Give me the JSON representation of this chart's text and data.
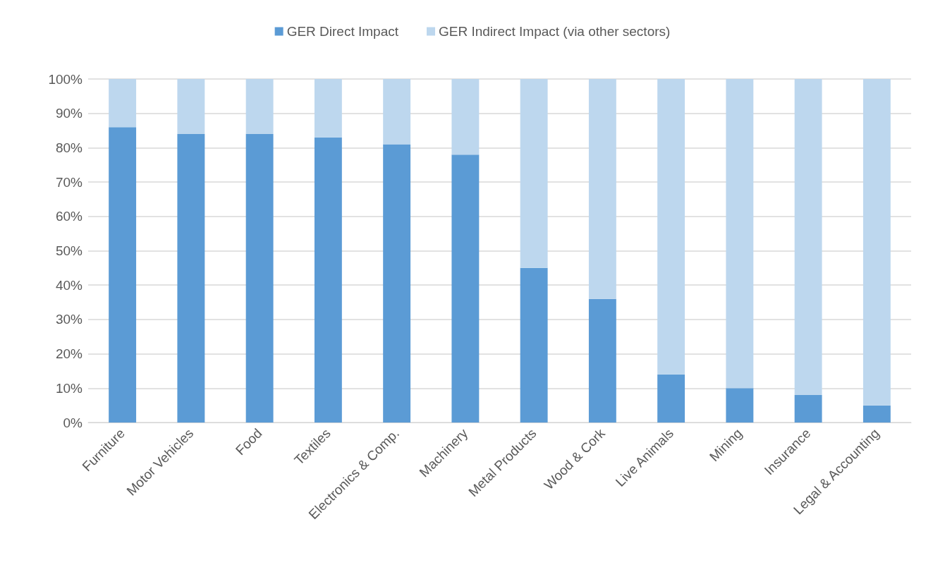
{
  "chart_data": {
    "type": "bar",
    "stacked": true,
    "categories": [
      "Furniture",
      "Motor Vehicles",
      "Food",
      "Textiles",
      "Electronics & Comp.",
      "Machinery",
      "Metal Products",
      "Wood & Cork",
      "Live Animals",
      "Mining",
      "Insurance",
      "Legal & Accounting"
    ],
    "series": [
      {
        "name": "GER Direct Impact",
        "color": "#5b9bd5",
        "values": [
          86,
          84,
          84,
          83,
          81,
          78,
          45,
          36,
          14,
          10,
          8,
          5
        ]
      },
      {
        "name": "GER Indirect Impact (via other sectors)",
        "color": "#bdd7ee",
        "values": [
          14,
          16,
          16,
          17,
          19,
          22,
          55,
          64,
          86,
          90,
          92,
          95
        ]
      }
    ],
    "ylim": [
      0,
      100
    ],
    "yticks": [
      {
        "value": 0,
        "label": "0%"
      },
      {
        "value": 10,
        "label": "10%"
      },
      {
        "value": 20,
        "label": "20%"
      },
      {
        "value": 30,
        "label": "30%"
      },
      {
        "value": 40,
        "label": "40%"
      },
      {
        "value": 50,
        "label": "50%"
      },
      {
        "value": 60,
        "label": "60%"
      },
      {
        "value": 70,
        "label": "70%"
      },
      {
        "value": 80,
        "label": "80%"
      },
      {
        "value": 90,
        "label": "90%"
      },
      {
        "value": 100,
        "label": "100%"
      }
    ],
    "grid": "y",
    "legend": "top"
  }
}
